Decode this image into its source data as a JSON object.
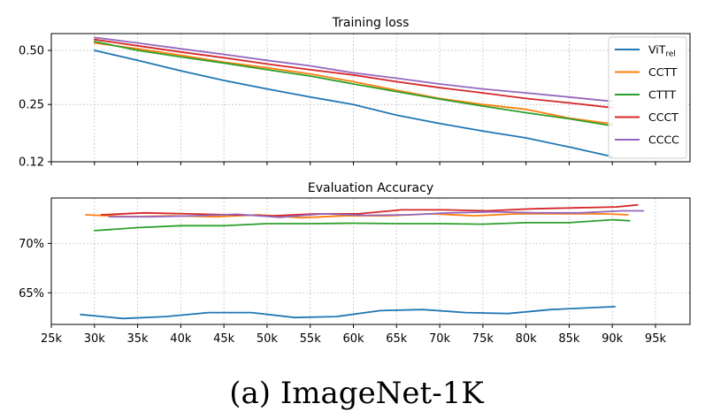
{
  "chart_data": [
    {
      "type": "line",
      "title": "Training loss",
      "xlabel": "",
      "ylabel": "",
      "yscale": "log",
      "ylim": [
        0.12,
        0.62
      ],
      "xlim": [
        25000,
        99000
      ],
      "grid": true,
      "legend": "top-right",
      "yticks": [
        0.12,
        0.25,
        0.5
      ],
      "ytick_labels": [
        "0.12",
        "0.25",
        "0.50"
      ],
      "series": [
        {
          "name": "ViT",
          "sub": "rel",
          "color": "#1f77b4",
          "x": [
            30000,
            35000,
            40000,
            45000,
            50000,
            55000,
            60000,
            65000,
            70000,
            75000,
            80000,
            85000,
            90000
          ],
          "y": [
            0.5,
            0.44,
            0.385,
            0.34,
            0.305,
            0.275,
            0.25,
            0.218,
            0.196,
            0.178,
            0.163,
            0.145,
            0.128
          ]
        },
        {
          "name": "CCTT",
          "color": "#ff7f0e",
          "x": [
            30000,
            35000,
            40000,
            45000,
            50000,
            55000,
            60000,
            65000,
            70000,
            75000,
            80000,
            85000,
            90000
          ],
          "y": [
            0.55,
            0.51,
            0.47,
            0.43,
            0.4,
            0.37,
            0.335,
            0.3,
            0.27,
            0.25,
            0.235,
            0.21,
            0.195
          ]
        },
        {
          "name": "CTTT",
          "color": "#2ca02c",
          "x": [
            30000,
            35000,
            40000,
            45000,
            50000,
            55000,
            60000,
            65000,
            70000,
            75000,
            80000,
            85000,
            90000
          ],
          "y": [
            0.56,
            0.5,
            0.46,
            0.425,
            0.39,
            0.36,
            0.325,
            0.295,
            0.268,
            0.245,
            0.225,
            0.208,
            0.19
          ]
        },
        {
          "name": "CCCT",
          "color": "#d62728",
          "x": [
            30000,
            35000,
            40000,
            45000,
            50000,
            55000,
            60000,
            65000,
            70000,
            75000,
            80000,
            85000,
            90000
          ],
          "y": [
            0.575,
            0.53,
            0.49,
            0.455,
            0.42,
            0.39,
            0.365,
            0.335,
            0.31,
            0.29,
            0.27,
            0.255,
            0.24
          ]
        },
        {
          "name": "CCCC",
          "color": "#9467bd",
          "x": [
            30000,
            35000,
            40000,
            45000,
            50000,
            55000,
            60000,
            65000,
            70000,
            75000,
            80000,
            85000,
            90000
          ],
          "y": [
            0.59,
            0.55,
            0.51,
            0.475,
            0.44,
            0.41,
            0.375,
            0.35,
            0.325,
            0.305,
            0.29,
            0.275,
            0.26
          ]
        }
      ]
    },
    {
      "type": "line",
      "title": "Evaluation Accuracy",
      "xlabel": "",
      "ylabel": "",
      "ylim": [
        61.8,
        74.6
      ],
      "xlim": [
        25000,
        99000
      ],
      "grid": true,
      "yticks": [
        65,
        70
      ],
      "ytick_labels": [
        "65%",
        "70%"
      ],
      "xticks": [
        25000,
        30000,
        35000,
        40000,
        45000,
        50000,
        55000,
        60000,
        65000,
        70000,
        75000,
        80000,
        85000,
        90000,
        95000
      ],
      "xtick_labels": [
        "25k",
        "30k",
        "35k",
        "40k",
        "45k",
        "50k",
        "55k",
        "60k",
        "65k",
        "70k",
        "75k",
        "80k",
        "85k",
        "90k",
        "95k"
      ],
      "series": [
        {
          "name": "ViT",
          "sub": "rel",
          "color": "#1f77b4",
          "x": [
            28400,
            33300,
            38300,
            43200,
            48200,
            53200,
            58100,
            63100,
            68000,
            73000,
            77900,
            82900,
            87800,
            90300
          ],
          "y": [
            62.8,
            62.4,
            62.6,
            63.0,
            63.0,
            62.5,
            62.6,
            63.2,
            63.3,
            63.0,
            62.9,
            63.3,
            63.5,
            63.6
          ]
        },
        {
          "name": "CCTT",
          "color": "#ff7f0e",
          "x": [
            29000,
            34000,
            39000,
            44000,
            49000,
            54000,
            59000,
            64000,
            69000,
            74000,
            79000,
            84000,
            89000,
            91800
          ],
          "y": [
            72.9,
            72.7,
            72.8,
            72.7,
            72.9,
            72.6,
            72.8,
            72.8,
            73.0,
            72.8,
            73.0,
            73.0,
            73.0,
            72.9
          ]
        },
        {
          "name": "CTTT",
          "color": "#2ca02c",
          "x": [
            30000,
            35000,
            40000,
            45000,
            50000,
            55000,
            60000,
            65000,
            70000,
            75000,
            80000,
            85000,
            90000,
            92000
          ],
          "y": [
            71.3,
            71.6,
            71.8,
            71.8,
            72.0,
            72.0,
            72.05,
            72.0,
            72.0,
            71.95,
            72.1,
            72.1,
            72.4,
            72.3
          ]
        },
        {
          "name": "CCCT",
          "color": "#d62728",
          "x": [
            30800,
            35800,
            40800,
            45700,
            50700,
            55700,
            60600,
            65600,
            70600,
            75500,
            80500,
            85400,
            90400,
            92900
          ],
          "y": [
            72.9,
            73.1,
            73.0,
            72.9,
            72.8,
            73.0,
            73.0,
            73.4,
            73.4,
            73.3,
            73.5,
            73.6,
            73.7,
            73.9
          ]
        },
        {
          "name": "CCCC",
          "color": "#9467bd",
          "x": [
            31700,
            36600,
            41600,
            46500,
            51500,
            56500,
            61400,
            66400,
            71300,
            76300,
            81200,
            86200,
            91100,
            93600
          ],
          "y": [
            72.7,
            72.7,
            72.8,
            72.95,
            72.65,
            73.0,
            72.85,
            72.9,
            73.1,
            73.2,
            73.1,
            73.1,
            73.3,
            73.3
          ]
        }
      ]
    }
  ],
  "caption": "(a) ImageNet-1K",
  "colors": {
    "grid": "#b0b0b0",
    "axis": "#000000",
    "background": "#ffffff"
  }
}
